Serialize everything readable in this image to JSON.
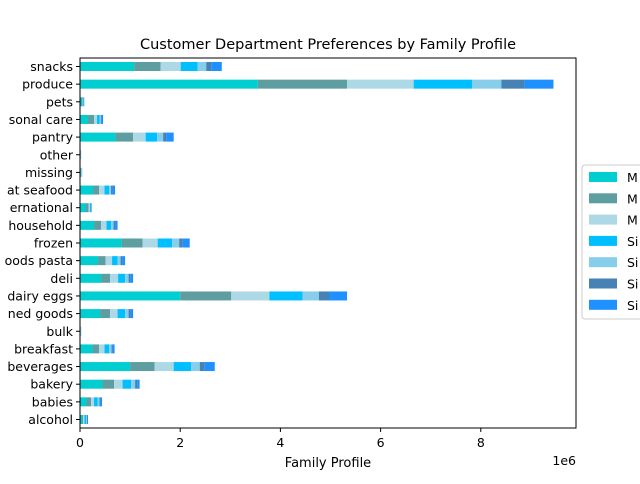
{
  "chart_data": {
    "type": "bar",
    "orientation": "horizontal",
    "stacked": true,
    "title": "Customer Department Preferences by Family Profile",
    "xlabel": "Family Profile",
    "ylabel": "",
    "x_offset_label": "1e6",
    "xlim": [
      0,
      9900000
    ],
    "x_ticks": [
      0,
      2000000,
      4000000,
      6000000,
      8000000
    ],
    "x_tick_labels": [
      "0",
      "2",
      "4",
      "6",
      "8"
    ],
    "grid": false,
    "legend": {
      "placement": "center-right",
      "visible_labels": [
        "M",
        "M",
        "M",
        "Si",
        "Si",
        "Si",
        "Si"
      ]
    },
    "categories": [
      "alcohol",
      "babies",
      "bakery",
      "beverages",
      "breakfast",
      "bulk",
      "canned goods",
      "dairy eggs",
      "deli",
      "dry goods pasta",
      "frozen",
      "household",
      "international",
      "meat seafood",
      "missing",
      "other",
      "pantry",
      "personal care",
      "pets",
      "produce",
      "snacks"
    ],
    "category_labels": [
      "alcohol",
      "babies",
      "bakery",
      "beverages",
      "breakfast",
      "bulk",
      "ned goods",
      "dairy eggs",
      "deli",
      "oods pasta",
      "frozen",
      "household",
      "ernational",
      "at seafood",
      "missing",
      "other",
      "pantry",
      "sonal care",
      "pets",
      "produce",
      "snacks"
    ],
    "series": [
      {
        "color": "#00CED1",
        "values": [
          40000,
          130000,
          450000,
          1000000,
          250000,
          8000,
          400000,
          2000000,
          420000,
          360000,
          830000,
          280000,
          110000,
          260000,
          16000,
          8000,
          710000,
          160000,
          30000,
          3550000,
          1080000
        ]
      },
      {
        "color": "#5F9EA0",
        "values": [
          20000,
          90000,
          230000,
          490000,
          130000,
          4000,
          200000,
          1020000,
          180000,
          150000,
          420000,
          140000,
          60000,
          120000,
          8000,
          4000,
          350000,
          120000,
          20000,
          1780000,
          530000
        ]
      },
      {
        "color": "#ADD8E6",
        "values": [
          30000,
          60000,
          170000,
          380000,
          110000,
          3000,
          150000,
          760000,
          160000,
          130000,
          300000,
          110000,
          30000,
          110000,
          6000,
          3000,
          250000,
          60000,
          10000,
          1330000,
          400000
        ]
      },
      {
        "color": "#00BFFF",
        "values": [
          30000,
          70000,
          170000,
          350000,
          90000,
          3000,
          150000,
          660000,
          140000,
          110000,
          290000,
          90000,
          20000,
          90000,
          6000,
          3000,
          230000,
          50000,
          10000,
          1170000,
          340000
        ]
      },
      {
        "color": "#87CEEB",
        "values": [
          20000,
          40000,
          80000,
          170000,
          50000,
          2000,
          70000,
          330000,
          70000,
          60000,
          140000,
          50000,
          10000,
          40000,
          3000,
          1000,
          120000,
          30000,
          5000,
          580000,
          170000
        ]
      },
      {
        "color": "#4682B4",
        "values": [
          10000,
          20000,
          40000,
          100000,
          20000,
          1000,
          40000,
          200000,
          30000,
          30000,
          70000,
          30000,
          5000,
          30000,
          2000,
          1000,
          60000,
          10000,
          5000,
          460000,
          100000
        ]
      },
      {
        "color": "#1E90FF",
        "values": [
          10000,
          30000,
          50000,
          200000,
          40000,
          2000,
          50000,
          360000,
          60000,
          60000,
          140000,
          50000,
          5000,
          50000,
          2000,
          2000,
          150000,
          30000,
          5000,
          580000,
          210000
        ]
      }
    ]
  }
}
